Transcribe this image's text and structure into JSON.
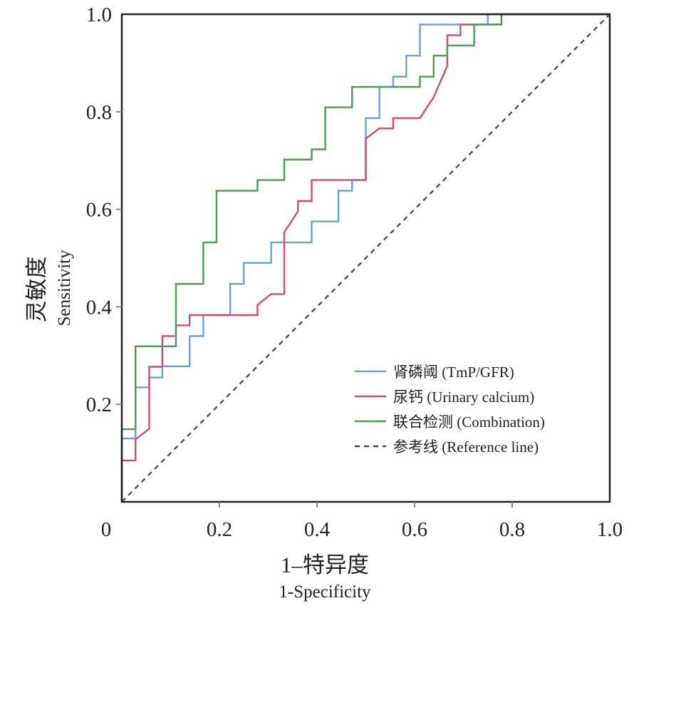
{
  "chart_data": {
    "type": "line",
    "xlabel_cn": "1–特异度",
    "xlabel_en": "1-Specificity",
    "ylabel_cn": "灵敏度",
    "ylabel_en": "Sensitivity",
    "xlim": [
      0,
      1
    ],
    "ylim": [
      0,
      1
    ],
    "x_tick_labels": [
      "0",
      "0.2",
      "0.4",
      "0.6",
      "0.8",
      "1.0"
    ],
    "y_tick_labels": [
      "0.2",
      "0.4",
      "0.6",
      "0.8",
      "1.0"
    ],
    "legend_position": "lower-right",
    "series": [
      {
        "name": "肾磷阈 (TmP/GFR)",
        "color": "#6a9fdc",
        "style": "step",
        "points": [
          [
            0,
            0
          ],
          [
            0,
            0.13
          ],
          [
            0.028,
            0.13
          ],
          [
            0.028,
            0.235
          ],
          [
            0.056,
            0.235
          ],
          [
            0.056,
            0.255
          ],
          [
            0.083,
            0.255
          ],
          [
            0.083,
            0.278
          ],
          [
            0.139,
            0.278
          ],
          [
            0.139,
            0.34
          ],
          [
            0.167,
            0.34
          ],
          [
            0.167,
            0.383
          ],
          [
            0.222,
            0.383
          ],
          [
            0.222,
            0.447
          ],
          [
            0.25,
            0.447
          ],
          [
            0.25,
            0.49
          ],
          [
            0.306,
            0.49
          ],
          [
            0.306,
            0.532
          ],
          [
            0.389,
            0.532
          ],
          [
            0.389,
            0.575
          ],
          [
            0.444,
            0.575
          ],
          [
            0.444,
            0.638
          ],
          [
            0.472,
            0.638
          ],
          [
            0.472,
            0.66
          ],
          [
            0.5,
            0.66
          ],
          [
            0.5,
            0.787
          ],
          [
            0.528,
            0.787
          ],
          [
            0.528,
            0.851
          ],
          [
            0.556,
            0.851
          ],
          [
            0.556,
            0.872
          ],
          [
            0.583,
            0.872
          ],
          [
            0.583,
            0.915
          ],
          [
            0.611,
            0.915
          ],
          [
            0.611,
            0.979
          ],
          [
            0.75,
            0.979
          ],
          [
            0.75,
            1.0
          ],
          [
            1.0,
            1.0
          ]
        ]
      },
      {
        "name": "尿钙 (Urinary calcium)",
        "color": "#d94a6a",
        "style": "step",
        "points": [
          [
            0,
            0
          ],
          [
            0,
            0.085
          ],
          [
            0.028,
            0.085
          ],
          [
            0.028,
            0.128
          ],
          [
            0.056,
            0.15
          ],
          [
            0.056,
            0.277
          ],
          [
            0.083,
            0.277
          ],
          [
            0.083,
            0.34
          ],
          [
            0.111,
            0.34
          ],
          [
            0.111,
            0.362
          ],
          [
            0.139,
            0.362
          ],
          [
            0.139,
            0.383
          ],
          [
            0.278,
            0.383
          ],
          [
            0.278,
            0.404
          ],
          [
            0.306,
            0.426
          ],
          [
            0.333,
            0.426
          ],
          [
            0.333,
            0.553
          ],
          [
            0.361,
            0.596
          ],
          [
            0.361,
            0.617
          ],
          [
            0.389,
            0.617
          ],
          [
            0.389,
            0.66
          ],
          [
            0.5,
            0.66
          ],
          [
            0.5,
            0.745
          ],
          [
            0.528,
            0.766
          ],
          [
            0.556,
            0.766
          ],
          [
            0.556,
            0.787
          ],
          [
            0.611,
            0.787
          ],
          [
            0.639,
            0.83
          ],
          [
            0.667,
            0.894
          ],
          [
            0.667,
            0.957
          ],
          [
            0.694,
            0.957
          ],
          [
            0.694,
            0.979
          ],
          [
            0.778,
            0.979
          ],
          [
            0.778,
            1.0
          ],
          [
            1.0,
            1.0
          ]
        ]
      },
      {
        "name": "联合检测 (Combination)",
        "color": "#4e9a57",
        "style": "step",
        "points": [
          [
            0,
            0
          ],
          [
            0,
            0.149
          ],
          [
            0.028,
            0.149
          ],
          [
            0.028,
            0.319
          ],
          [
            0.111,
            0.319
          ],
          [
            0.111,
            0.447
          ],
          [
            0.167,
            0.447
          ],
          [
            0.167,
            0.532
          ],
          [
            0.194,
            0.532
          ],
          [
            0.194,
            0.638
          ],
          [
            0.278,
            0.638
          ],
          [
            0.278,
            0.66
          ],
          [
            0.333,
            0.66
          ],
          [
            0.333,
            0.702
          ],
          [
            0.389,
            0.702
          ],
          [
            0.389,
            0.723
          ],
          [
            0.417,
            0.723
          ],
          [
            0.417,
            0.809
          ],
          [
            0.472,
            0.809
          ],
          [
            0.472,
            0.851
          ],
          [
            0.611,
            0.851
          ],
          [
            0.611,
            0.872
          ],
          [
            0.639,
            0.872
          ],
          [
            0.639,
            0.915
          ],
          [
            0.667,
            0.915
          ],
          [
            0.667,
            0.936
          ],
          [
            0.722,
            0.936
          ],
          [
            0.722,
            0.979
          ],
          [
            0.778,
            0.979
          ],
          [
            0.778,
            1.0
          ],
          [
            1.0,
            1.0
          ]
        ]
      },
      {
        "name": "参考线 (Reference line)",
        "color": "#444444",
        "style": "dashed",
        "points": [
          [
            0,
            0
          ],
          [
            1,
            1
          ]
        ]
      }
    ]
  }
}
